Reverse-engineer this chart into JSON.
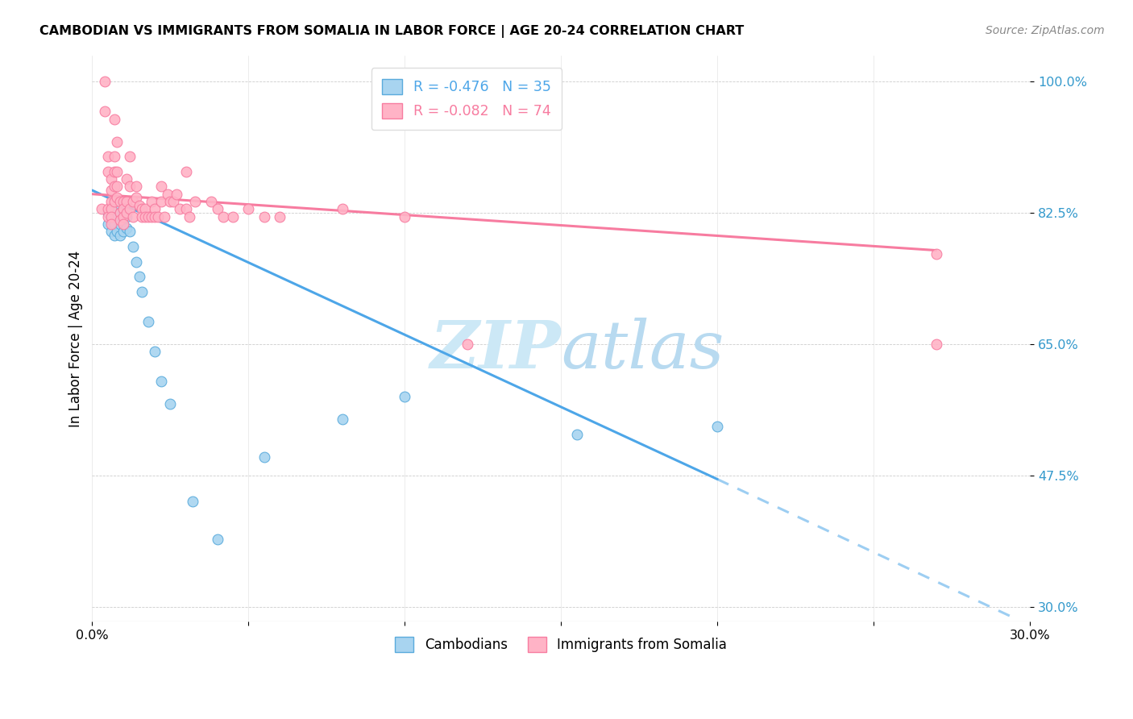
{
  "title": "CAMBODIAN VS IMMIGRANTS FROM SOMALIA IN LABOR FORCE | AGE 20-24 CORRELATION CHART",
  "source": "Source: ZipAtlas.com",
  "ylabel": "In Labor Force | Age 20-24",
  "xlim": [
    0.0,
    0.3
  ],
  "ylim": [
    0.28,
    1.035
  ],
  "ytick_vals": [
    0.3,
    0.475,
    0.65,
    0.825,
    1.0
  ],
  "ytick_labels": [
    "30.0%",
    "47.5%",
    "65.0%",
    "82.5%",
    "100.0%"
  ],
  "xtick_vals": [
    0.0,
    0.05,
    0.1,
    0.15,
    0.2,
    0.25,
    0.3
  ],
  "xtick_labels": [
    "0.0%",
    "",
    "",
    "",
    "",
    "",
    "30.0%"
  ],
  "cambodian_R": -0.476,
  "cambodian_N": 35,
  "somalia_R": -0.082,
  "somalia_N": 74,
  "cambodian_color": "#a8d4f0",
  "somalia_color": "#ffb3c6",
  "cambodian_edge": "#5aabdc",
  "somalia_edge": "#f77ca0",
  "trend_blue": "#4da6e8",
  "trend_pink": "#f77ca0",
  "watermark_color": "#cce8f6",
  "cambodian_x": [
    0.005,
    0.005,
    0.006,
    0.006,
    0.006,
    0.007,
    0.007,
    0.007,
    0.008,
    0.008,
    0.008,
    0.009,
    0.009,
    0.009,
    0.01,
    0.01,
    0.01,
    0.011,
    0.011,
    0.012,
    0.013,
    0.014,
    0.015,
    0.016,
    0.018,
    0.02,
    0.022,
    0.025,
    0.032,
    0.04,
    0.055,
    0.08,
    0.1,
    0.155,
    0.2
  ],
  "cambodian_y": [
    0.825,
    0.81,
    0.83,
    0.815,
    0.8,
    0.825,
    0.81,
    0.795,
    0.83,
    0.82,
    0.8,
    0.825,
    0.81,
    0.795,
    0.825,
    0.815,
    0.8,
    0.82,
    0.805,
    0.8,
    0.78,
    0.76,
    0.74,
    0.72,
    0.68,
    0.64,
    0.6,
    0.57,
    0.44,
    0.39,
    0.5,
    0.55,
    0.58,
    0.53,
    0.54
  ],
  "somalia_x": [
    0.003,
    0.004,
    0.004,
    0.005,
    0.005,
    0.005,
    0.005,
    0.006,
    0.006,
    0.006,
    0.006,
    0.006,
    0.006,
    0.007,
    0.007,
    0.007,
    0.007,
    0.007,
    0.008,
    0.008,
    0.008,
    0.008,
    0.009,
    0.009,
    0.009,
    0.01,
    0.01,
    0.01,
    0.01,
    0.011,
    0.011,
    0.011,
    0.012,
    0.012,
    0.012,
    0.013,
    0.013,
    0.014,
    0.014,
    0.015,
    0.016,
    0.016,
    0.017,
    0.017,
    0.018,
    0.019,
    0.019,
    0.02,
    0.02,
    0.021,
    0.022,
    0.022,
    0.023,
    0.024,
    0.025,
    0.026,
    0.027,
    0.028,
    0.03,
    0.03,
    0.031,
    0.033,
    0.038,
    0.04,
    0.042,
    0.045,
    0.05,
    0.055,
    0.06,
    0.08,
    0.1,
    0.12,
    0.27,
    0.27
  ],
  "somalia_y": [
    0.83,
    1.0,
    0.96,
    0.83,
    0.82,
    0.9,
    0.88,
    0.87,
    0.855,
    0.84,
    0.83,
    0.82,
    0.81,
    0.95,
    0.9,
    0.88,
    0.86,
    0.84,
    0.92,
    0.88,
    0.86,
    0.845,
    0.84,
    0.825,
    0.815,
    0.84,
    0.83,
    0.82,
    0.81,
    0.87,
    0.84,
    0.825,
    0.9,
    0.86,
    0.83,
    0.84,
    0.82,
    0.86,
    0.845,
    0.835,
    0.83,
    0.82,
    0.83,
    0.82,
    0.82,
    0.84,
    0.82,
    0.83,
    0.82,
    0.82,
    0.86,
    0.84,
    0.82,
    0.85,
    0.84,
    0.84,
    0.85,
    0.83,
    0.88,
    0.83,
    0.82,
    0.84,
    0.84,
    0.83,
    0.82,
    0.82,
    0.83,
    0.82,
    0.82,
    0.83,
    0.82,
    0.65,
    0.65,
    0.77
  ],
  "trend_blue_x0": 0.0,
  "trend_blue_y0": 0.855,
  "trend_blue_x1": 0.2,
  "trend_blue_y1": 0.47,
  "trend_blue_dash_x0": 0.2,
  "trend_blue_dash_y0": 0.47,
  "trend_blue_dash_x1": 0.295,
  "trend_blue_dash_y1": 0.285,
  "trend_pink_x0": 0.0,
  "trend_pink_y0": 0.85,
  "trend_pink_x1": 0.27,
  "trend_pink_y1": 0.775
}
